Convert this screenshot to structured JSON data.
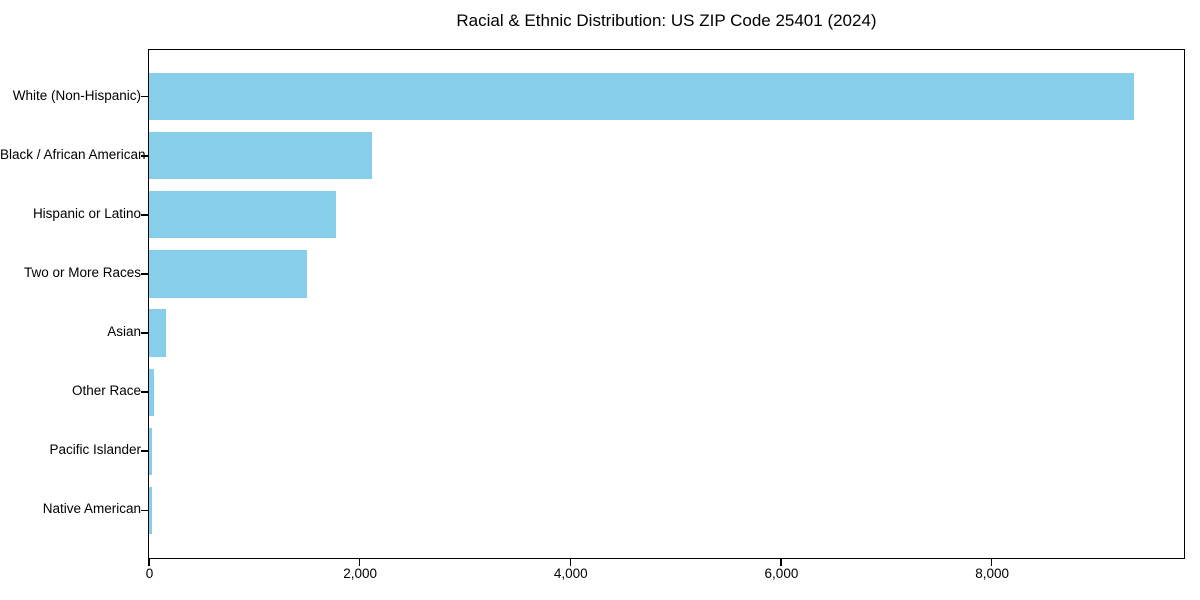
{
  "chart_data": {
    "type": "bar",
    "orientation": "horizontal",
    "title": "Racial & Ethnic Distribution: US ZIP Code 25401 (2024)",
    "categories": [
      "White (Non-Hispanic)",
      "Black / African American",
      "Hispanic or Latino",
      "Two or More Races",
      "Asian",
      "Other Race",
      "Pacific Islander",
      "Native American"
    ],
    "values": [
      9350,
      2120,
      1780,
      1500,
      165,
      45,
      25,
      30
    ],
    "xlabel": "",
    "ylabel": "",
    "xlim": [
      0,
      9817
    ],
    "x_ticks": [
      0,
      2000,
      4000,
      6000,
      8000
    ],
    "x_tick_labels": [
      "0",
      "2,000",
      "4,000",
      "6,000",
      "8,000"
    ],
    "bar_color": "#87CEEB",
    "spine_color": "#000000",
    "grid": false,
    "legend": false,
    "value_labels": false,
    "largest_category_on_top": true
  }
}
